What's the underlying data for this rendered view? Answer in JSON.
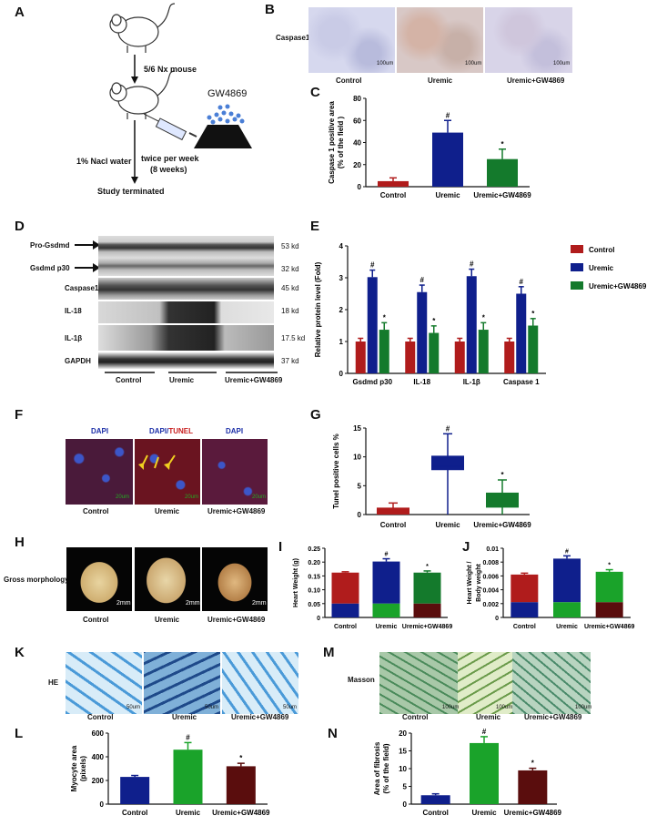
{
  "panels": {
    "A": "A",
    "B": "B",
    "C": "C",
    "D": "D",
    "E": "E",
    "F": "F",
    "G": "G",
    "H": "H",
    "I": "I",
    "J": "J",
    "K": "K",
    "L": "L",
    "M": "M",
    "N": "N"
  },
  "schema": {
    "model": "5/6 Nx mouse",
    "drug": "GW4869",
    "water": "1% Nacl water",
    "dosing": "twice per week",
    "duration": "(8 weeks)",
    "end": "Study terminated"
  },
  "groups": [
    "Control",
    "Uremic",
    "Uremic+GW4869"
  ],
  "colors": {
    "red": "#b01c1c",
    "blue": "#0f1f8c",
    "green": "#147a2c",
    "darkred": "#5a0d0d",
    "bgreen": "#1aa32a"
  },
  "B": {
    "stain": "Caspase1",
    "scale": [
      "100um",
      "100um",
      "100um"
    ]
  },
  "blot": {
    "rows": [
      "Pro-Gsdmd",
      "Gsdmd  p30",
      "Caspase1",
      "IL-18",
      "IL-1β",
      "GAPDH"
    ],
    "kd": [
      "53 kd",
      "32 kd",
      "45 kd",
      "18 kd",
      "17.5 kd",
      "37 kd"
    ]
  },
  "F": {
    "dapi": "DAPI",
    "tunel_a": "DAPI/",
    "tunel_b": "TUNEL",
    "scale": [
      "20um",
      "20um",
      "20um"
    ]
  },
  "H": {
    "label": "Gross morphology",
    "scale": [
      "2mm",
      "2mm",
      "2mm"
    ]
  },
  "K": {
    "label": "HE",
    "scale": [
      "50um",
      "50um",
      "50um"
    ]
  },
  "M": {
    "label": "Masson",
    "scale": [
      "100um",
      "100um",
      "100um"
    ]
  },
  "chart_data": [
    {
      "panel": "C",
      "type": "bar",
      "categories": [
        "Control",
        "Uremic",
        "Uremic+GW4869"
      ],
      "values": [
        5,
        49,
        25
      ],
      "errors": [
        3,
        11,
        9
      ],
      "ylabel": "Caspase 1 positive area\n(% of the field )",
      "ylim": [
        0,
        80
      ],
      "yticks": [
        "0",
        "20",
        "40",
        "60",
        "80"
      ],
      "marks": [
        "",
        "#",
        "*"
      ]
    },
    {
      "panel": "E",
      "type": "bar",
      "categories": [
        "Gsdmd  p30",
        "IL-18",
        "IL-1β",
        "Caspase 1"
      ],
      "series": [
        {
          "name": "Control",
          "values": [
            1.0,
            1.0,
            1.0,
            1.0
          ]
        },
        {
          "name": "Uremic",
          "values": [
            3.02,
            2.55,
            3.05,
            2.5
          ]
        },
        {
          "name": "Uremic+GW4869",
          "values": [
            1.37,
            1.27,
            1.37,
            1.5
          ]
        }
      ],
      "ylabel": "Relative protein level (Fold)",
      "ylim": [
        0,
        4
      ],
      "yticks": [
        "0",
        "1",
        "2",
        "3",
        "4"
      ]
    },
    {
      "panel": "G",
      "type": "box",
      "categories": [
        "Control",
        "Uremic",
        "Uremic+GW4869"
      ],
      "ylabel": "Tunel positive cells %",
      "ylim": [
        0,
        15
      ],
      "yticks": [
        "0",
        "5",
        "10",
        "15"
      ],
      "boxes": [
        {
          "min": 0,
          "q1": 0,
          "median": 0.8,
          "q3": 1.2,
          "max": 2
        },
        {
          "min": 0,
          "q1": 7.7,
          "median": 8.3,
          "q3": 10.2,
          "max": 14
        },
        {
          "min": 0,
          "q1": 1.2,
          "median": 2,
          "q3": 3.8,
          "max": 6
        }
      ],
      "marks": [
        "",
        "#",
        "*"
      ]
    },
    {
      "panel": "I",
      "type": "bar",
      "categories": [
        "Control",
        "Uremic",
        "Uremic+GW4869"
      ],
      "values": [
        0.162,
        0.202,
        0.162
      ],
      "errors": [
        0.003,
        0.01,
        0.006
      ],
      "ylabel": "Heart Weight (g)",
      "ylim": [
        0,
        0.25
      ],
      "yticks": [
        "0",
        "0.05",
        "0.10",
        "0.15",
        "0.20",
        "0.25"
      ],
      "marks": [
        "",
        "#",
        "*"
      ]
    },
    {
      "panel": "J",
      "type": "bar",
      "categories": [
        "Control",
        "Uremic",
        "Uremic+GW4869"
      ],
      "values": [
        0.0062,
        0.0085,
        0.0066
      ],
      "errors": [
        0.0002,
        0.0004,
        0.0003
      ],
      "ylabel": "Heart Weight /\nBody weight",
      "ylim": [
        0,
        0.01
      ],
      "yticks": [
        "0",
        "0.002",
        "0.004",
        "0.006",
        "0.008",
        "0.01"
      ],
      "marks": [
        "",
        "#",
        "*"
      ]
    },
    {
      "panel": "L",
      "type": "bar",
      "categories": [
        "Control",
        "Uremic",
        "Uremic+GW4869"
      ],
      "values": [
        230,
        460,
        320
      ],
      "errors": [
        12,
        60,
        25
      ],
      "ylabel": "Myocyte area\n(pixels)",
      "ylim": [
        0,
        600
      ],
      "yticks": [
        "0",
        "200",
        "400",
        "600"
      ],
      "marks": [
        "",
        "#",
        "*"
      ]
    },
    {
      "panel": "N",
      "type": "bar",
      "categories": [
        "Control",
        "Uremic",
        "Uremic+GW4869"
      ],
      "values": [
        2.5,
        17.2,
        9.5
      ],
      "errors": [
        0.4,
        1.8,
        0.6
      ],
      "ylabel": "Area of fibrosis\n(% of the field)",
      "ylim": [
        0,
        20
      ],
      "yticks": [
        "0",
        "5",
        "10",
        "15",
        "20"
      ],
      "marks": [
        "",
        "#",
        "*"
      ]
    }
  ]
}
